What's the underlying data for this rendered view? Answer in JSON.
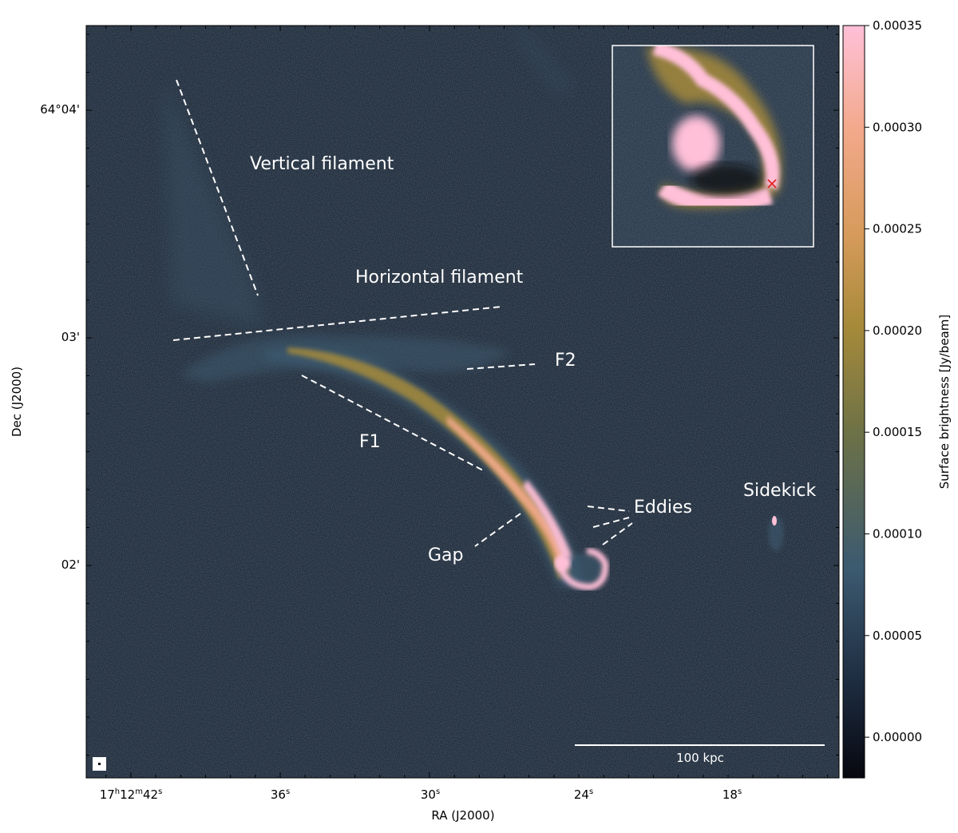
{
  "figure": {
    "annotations": {
      "vertical_filament": "Vertical filament",
      "horizontal_filament": "Horizontal filament",
      "f1": "F1",
      "f2": "F2",
      "eddies": "Eddies",
      "gap": "Gap",
      "sidekick": "Sidekick"
    },
    "scale_bar": {
      "label": "100 kpc"
    },
    "axes": {
      "xlabel": "RA (J2000)",
      "ylabel": "Dec (J2000)",
      "ra_ticks": [
        "17h12m42s",
        "36s",
        "30s",
        "24s",
        "18s"
      ],
      "dec_ticks": [
        "64°04'",
        "03'",
        "02'"
      ]
    },
    "colorbar": {
      "label": "Surface brightness [Jy/beam]",
      "ticks": [
        "0.00035",
        "0.00030",
        "0.00025",
        "0.00020",
        "0.00015",
        "0.00010",
        "0.00005",
        "0.00000"
      ],
      "min": -2e-05,
      "max": 0.00035,
      "colors": [
        "#07070f",
        "#1c2a3e",
        "#3c5a70",
        "#6a7048",
        "#a68a3a",
        "#d69a5a",
        "#f2a98a",
        "#ffc0d8"
      ]
    }
  }
}
